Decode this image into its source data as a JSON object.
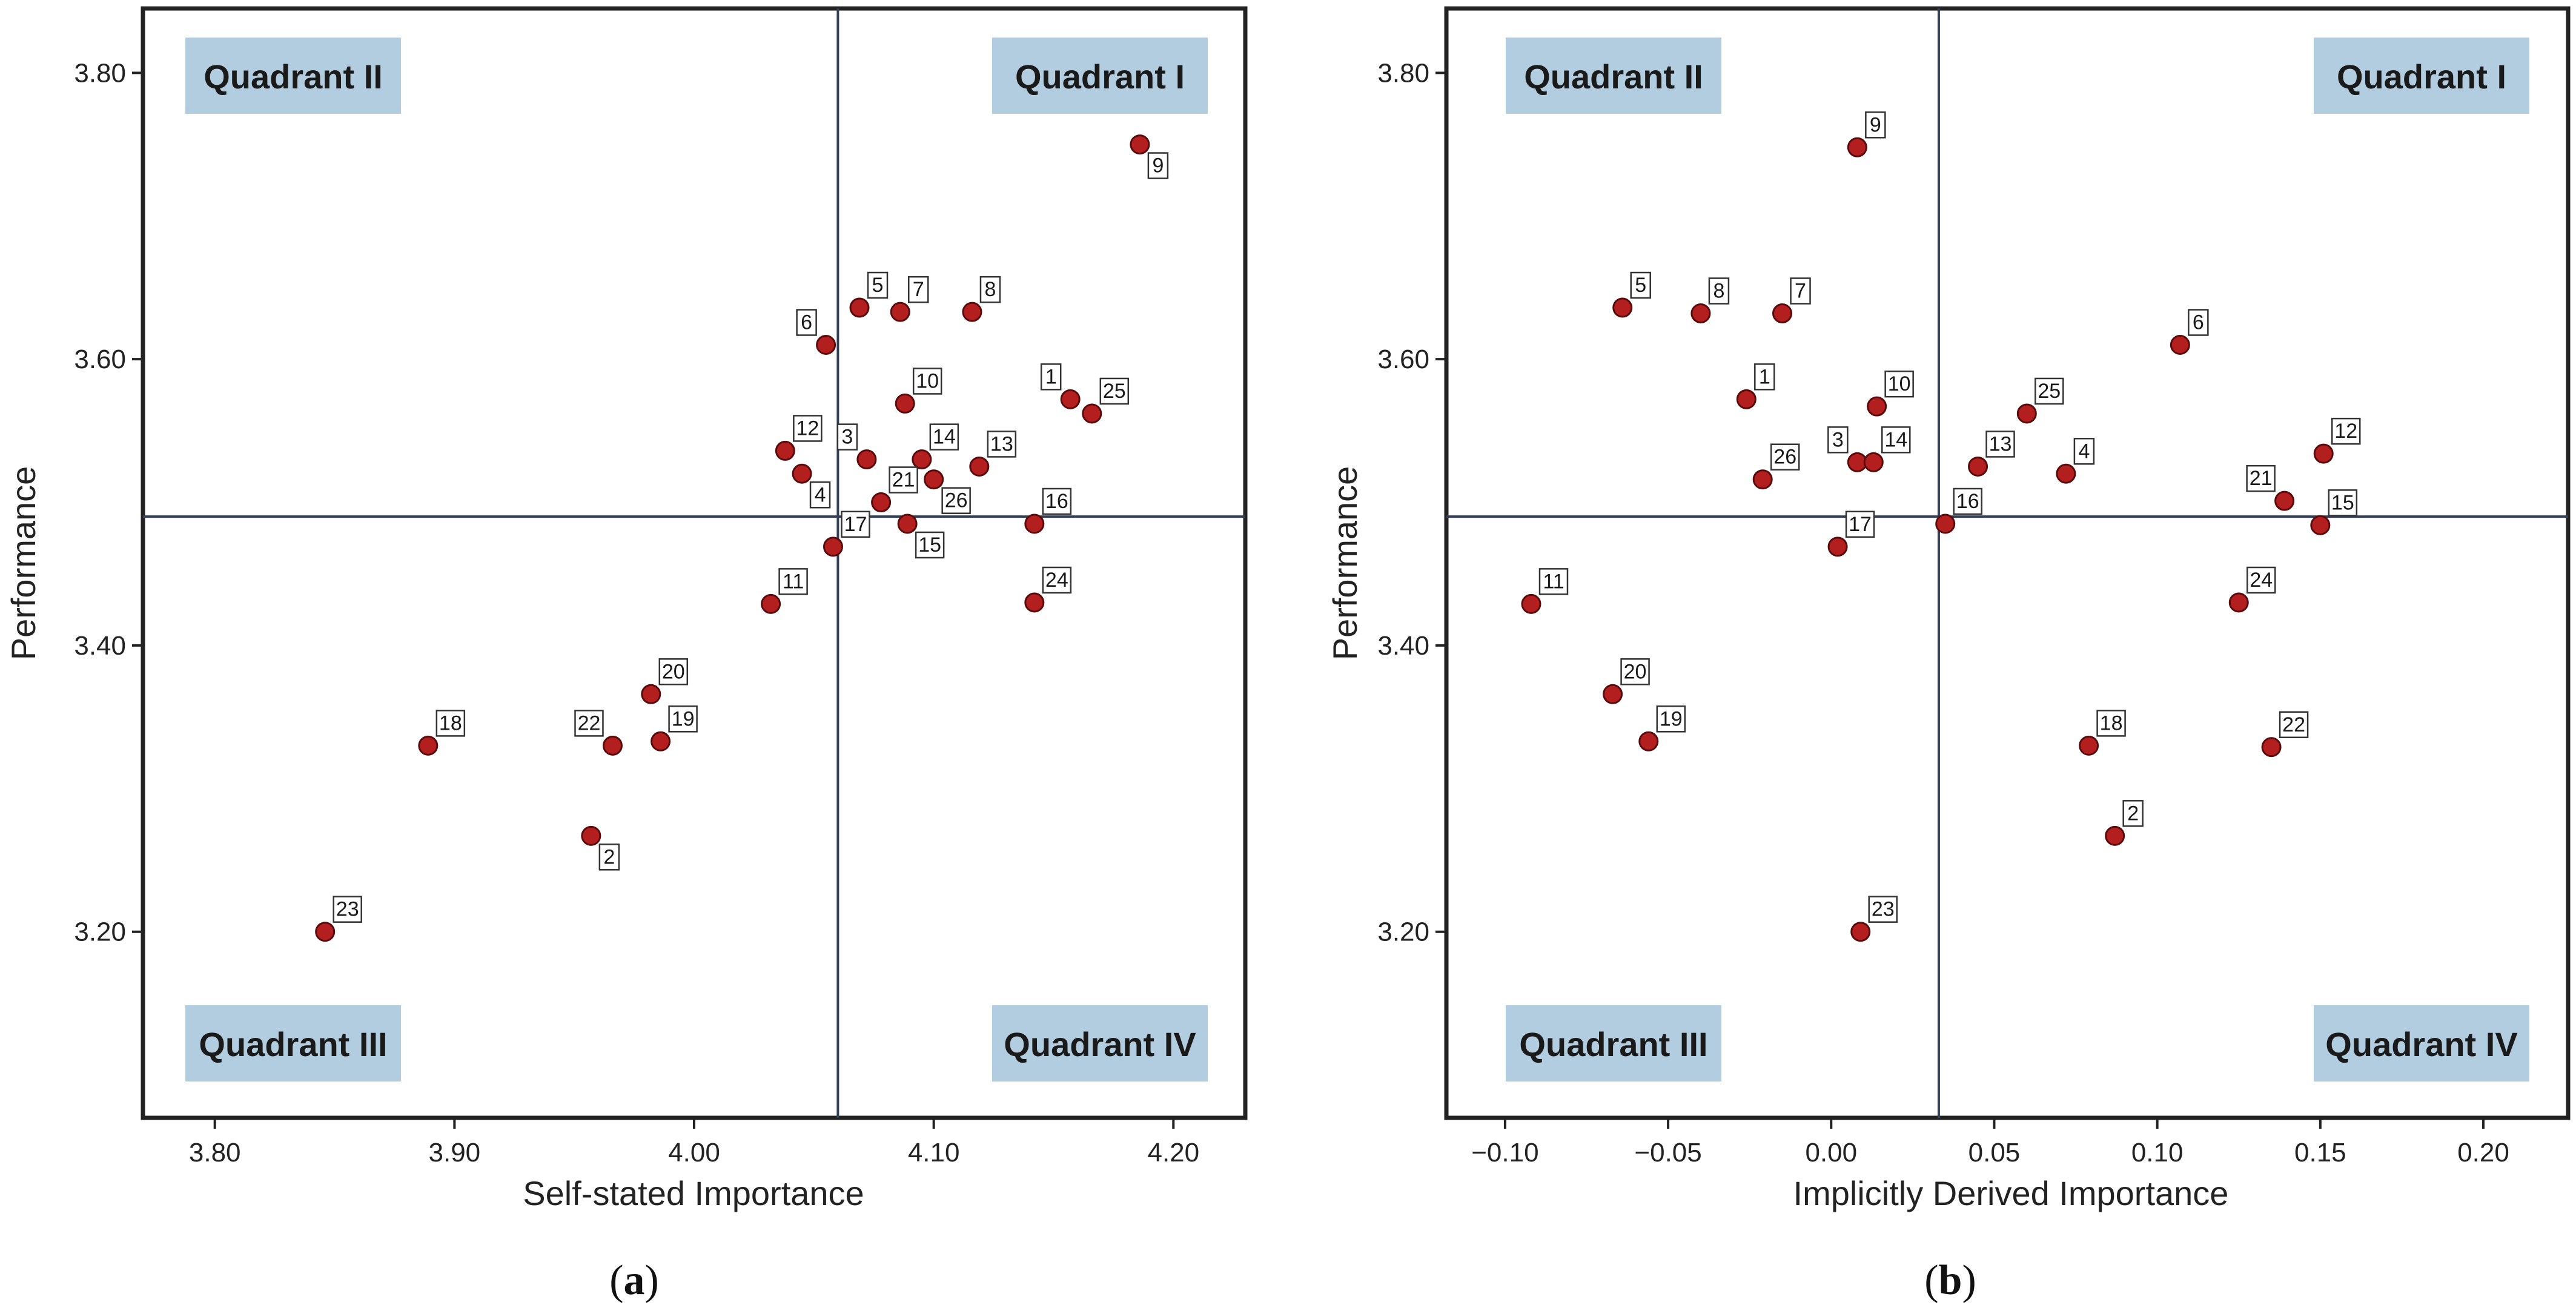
{
  "colors": {
    "marker_fill": "#b31e1e",
    "marker_stroke": "#5a0c0c",
    "quadrant_box": "#b3cde0",
    "frame": "#222222",
    "ref_line": "#34405a"
  },
  "chart_data": [
    {
      "type": "scatter",
      "panel_tag": "a",
      "title": "",
      "xlabel": "Self-stated Importance",
      "ylabel": "Performance",
      "xlim": [
        3.77,
        4.23
      ],
      "ylim": [
        3.07,
        3.845
      ],
      "xticks": [
        3.8,
        3.9,
        4.0,
        4.1,
        4.2
      ],
      "xtick_labels": [
        "3.80",
        "3.90",
        "4.00",
        "4.10",
        "4.20"
      ],
      "yticks": [
        3.2,
        3.4,
        3.6,
        3.8
      ],
      "ytick_labels": [
        "3.20",
        "3.40",
        "3.60",
        "3.80"
      ],
      "ref_x": 4.06,
      "ref_y": 3.49,
      "quadrants": {
        "I": "Quadrant I",
        "II": "Quadrant II",
        "III": "Quadrant III",
        "IV": "Quadrant IV"
      },
      "points": [
        {
          "id": "1",
          "x": 4.157,
          "y": 3.572,
          "pos": "ul"
        },
        {
          "id": "2",
          "x": 3.957,
          "y": 3.267,
          "pos": "lr"
        },
        {
          "id": "3",
          "x": 4.072,
          "y": 3.53,
          "pos": "ul"
        },
        {
          "id": "4",
          "x": 4.045,
          "y": 3.52,
          "pos": "lr"
        },
        {
          "id": "5",
          "x": 4.069,
          "y": 3.636,
          "pos": "ur"
        },
        {
          "id": "6",
          "x": 4.055,
          "y": 3.61,
          "pos": "ul"
        },
        {
          "id": "7",
          "x": 4.086,
          "y": 3.633,
          "pos": "ur"
        },
        {
          "id": "8",
          "x": 4.116,
          "y": 3.633,
          "pos": "ur"
        },
        {
          "id": "9",
          "x": 4.186,
          "y": 3.75,
          "pos": "lr"
        },
        {
          "id": "10",
          "x": 4.088,
          "y": 3.569,
          "pos": "ur"
        },
        {
          "id": "11",
          "x": 4.032,
          "y": 3.429,
          "pos": "ur"
        },
        {
          "id": "12",
          "x": 4.038,
          "y": 3.536,
          "pos": "ur"
        },
        {
          "id": "13",
          "x": 4.119,
          "y": 3.525,
          "pos": "ur"
        },
        {
          "id": "14",
          "x": 4.095,
          "y": 3.53,
          "pos": "ur"
        },
        {
          "id": "15",
          "x": 4.089,
          "y": 3.485,
          "pos": "lr"
        },
        {
          "id": "16",
          "x": 4.142,
          "y": 3.485,
          "pos": "ur"
        },
        {
          "id": "17",
          "x": 4.058,
          "y": 3.469,
          "pos": "ur"
        },
        {
          "id": "18",
          "x": 3.889,
          "y": 3.33,
          "pos": "ur"
        },
        {
          "id": "19",
          "x": 3.986,
          "y": 3.333,
          "pos": "ur"
        },
        {
          "id": "20",
          "x": 3.982,
          "y": 3.366,
          "pos": "ur"
        },
        {
          "id": "21",
          "x": 4.078,
          "y": 3.5,
          "pos": "ur"
        },
        {
          "id": "22",
          "x": 3.966,
          "y": 3.33,
          "pos": "ul"
        },
        {
          "id": "23",
          "x": 3.846,
          "y": 3.2,
          "pos": "ur"
        },
        {
          "id": "24",
          "x": 4.142,
          "y": 3.43,
          "pos": "ur"
        },
        {
          "id": "25",
          "x": 4.166,
          "y": 3.562,
          "pos": "ur"
        },
        {
          "id": "26",
          "x": 4.1,
          "y": 3.516,
          "pos": "lr"
        }
      ]
    },
    {
      "type": "scatter",
      "panel_tag": "b",
      "title": "",
      "xlabel": "Implicitly Derived Importance",
      "ylabel": "Performance",
      "xlim": [
        -0.118,
        0.226
      ],
      "ylim": [
        3.07,
        3.845
      ],
      "xticks": [
        -0.1,
        -0.05,
        0.0,
        0.05,
        0.1,
        0.15,
        0.2
      ],
      "xtick_labels": [
        "−0.10",
        "−0.05",
        "0.00",
        "0.05",
        "0.10",
        "0.15",
        "0.20"
      ],
      "yticks": [
        3.2,
        3.4,
        3.6,
        3.8
      ],
      "ytick_labels": [
        "3.20",
        "3.40",
        "3.60",
        "3.80"
      ],
      "ref_x": 0.033,
      "ref_y": 3.49,
      "quadrants": {
        "I": "Quadrant I",
        "II": "Quadrant II",
        "III": "Quadrant III",
        "IV": "Quadrant IV"
      },
      "points": [
        {
          "id": "1",
          "x": -0.026,
          "y": 3.572,
          "pos": "ur"
        },
        {
          "id": "2",
          "x": 0.087,
          "y": 3.267,
          "pos": "ur"
        },
        {
          "id": "3",
          "x": 0.008,
          "y": 3.528,
          "pos": "ul"
        },
        {
          "id": "4",
          "x": 0.072,
          "y": 3.52,
          "pos": "ur"
        },
        {
          "id": "5",
          "x": -0.064,
          "y": 3.636,
          "pos": "ur"
        },
        {
          "id": "6",
          "x": 0.107,
          "y": 3.61,
          "pos": "ur"
        },
        {
          "id": "7",
          "x": -0.015,
          "y": 3.632,
          "pos": "ur"
        },
        {
          "id": "8",
          "x": -0.04,
          "y": 3.632,
          "pos": "ur"
        },
        {
          "id": "9",
          "x": 0.008,
          "y": 3.748,
          "pos": "ur"
        },
        {
          "id": "10",
          "x": 0.014,
          "y": 3.567,
          "pos": "ur"
        },
        {
          "id": "11",
          "x": -0.092,
          "y": 3.429,
          "pos": "ur"
        },
        {
          "id": "12",
          "x": 0.151,
          "y": 3.534,
          "pos": "ur"
        },
        {
          "id": "13",
          "x": 0.045,
          "y": 3.525,
          "pos": "ur"
        },
        {
          "id": "14",
          "x": 0.013,
          "y": 3.528,
          "pos": "ur"
        },
        {
          "id": "15",
          "x": 0.15,
          "y": 3.484,
          "pos": "ur"
        },
        {
          "id": "16",
          "x": 0.035,
          "y": 3.485,
          "pos": "ur"
        },
        {
          "id": "17",
          "x": 0.002,
          "y": 3.469,
          "pos": "ur"
        },
        {
          "id": "18",
          "x": 0.079,
          "y": 3.33,
          "pos": "ur"
        },
        {
          "id": "19",
          "x": -0.056,
          "y": 3.333,
          "pos": "ur"
        },
        {
          "id": "20",
          "x": -0.067,
          "y": 3.366,
          "pos": "ur"
        },
        {
          "id": "21",
          "x": 0.139,
          "y": 3.501,
          "pos": "ul"
        },
        {
          "id": "22",
          "x": 0.135,
          "y": 3.329,
          "pos": "ur"
        },
        {
          "id": "23",
          "x": 0.009,
          "y": 3.2,
          "pos": "ur"
        },
        {
          "id": "24",
          "x": 0.125,
          "y": 3.43,
          "pos": "ur"
        },
        {
          "id": "25",
          "x": 0.06,
          "y": 3.562,
          "pos": "ur"
        },
        {
          "id": "26",
          "x": -0.021,
          "y": 3.516,
          "pos": "ur"
        }
      ]
    }
  ]
}
